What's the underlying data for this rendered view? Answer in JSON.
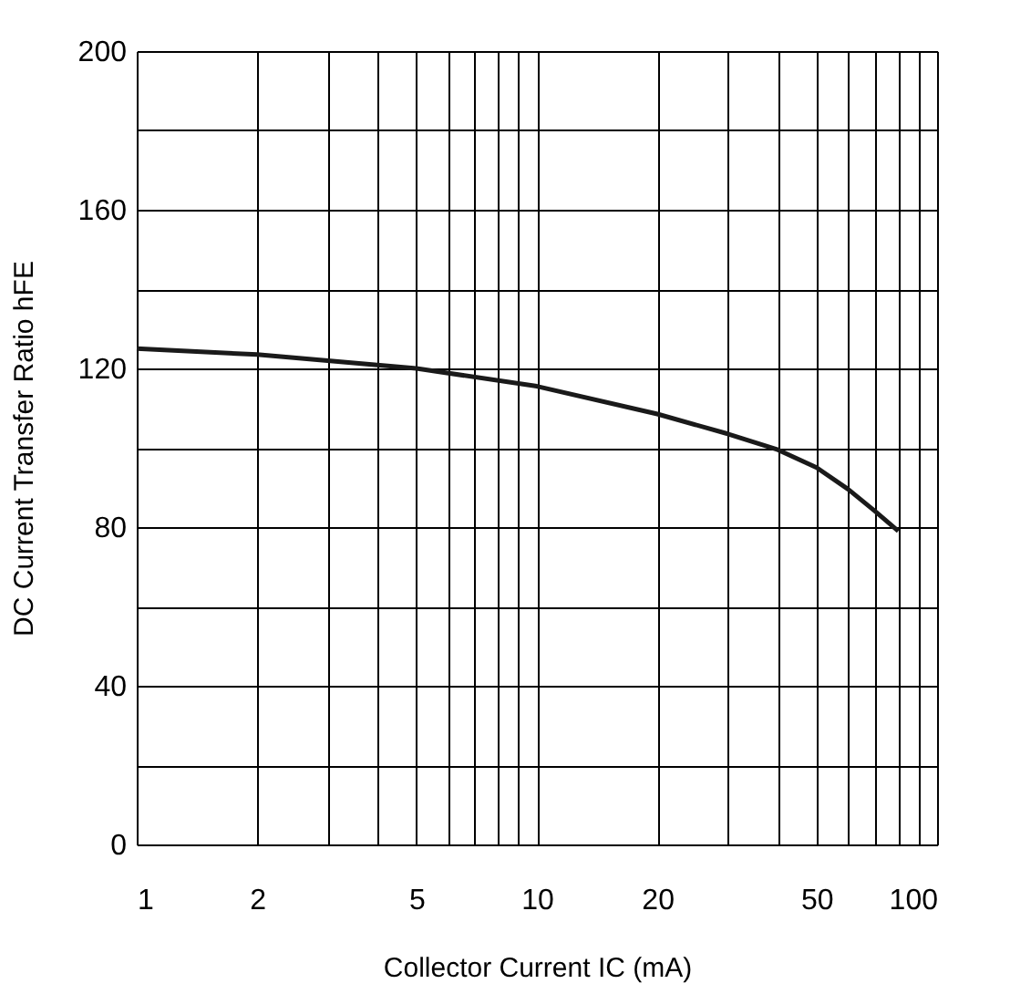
{
  "chart_data": {
    "type": "line",
    "xlabel": "Collector Current    IC  (mA)",
    "ylabel": "DC Current Transfer Ratio    hFE",
    "log": "x",
    "grid": true,
    "marker": "none",
    "line_style": "solid",
    "xlim": [
      1,
      100
    ],
    "ylim": [
      0,
      200
    ],
    "xticks": [
      1,
      2,
      {
        "value": 3,
        "label": null
      },
      {
        "value": 4,
        "label": null
      },
      5,
      {
        "value": 6,
        "label": null
      },
      {
        "value": 7,
        "label": null
      },
      {
        "value": 8,
        "label": null
      },
      {
        "value": 9,
        "label": null
      },
      10,
      20,
      {
        "value": 30,
        "label": null
      },
      {
        "value": 40,
        "label": null
      },
      50,
      {
        "value": 60,
        "label": null
      },
      {
        "value": 70,
        "label": null
      },
      {
        "value": 80,
        "label": null
      },
      {
        "value": 90,
        "label": null
      },
      100
    ],
    "yticks": [
      0,
      {
        "value": 20,
        "label": null
      },
      40,
      {
        "value": 60,
        "label": null
      },
      80,
      {
        "value": 100,
        "label": null
      },
      120,
      {
        "value": 140,
        "label": null
      },
      160,
      {
        "value": 180,
        "label": null
      },
      200
    ],
    "x": [
      1,
      2,
      5,
      10,
      20,
      30,
      40,
      50,
      60,
      70,
      80
    ],
    "series": [
      {
        "color": "#1a1a1a",
        "values": [
          125,
          123.5,
          120,
          115.5,
          108.5,
          103.5,
          99.5,
          95,
          89.5,
          84,
          79
        ]
      }
    ]
  }
}
